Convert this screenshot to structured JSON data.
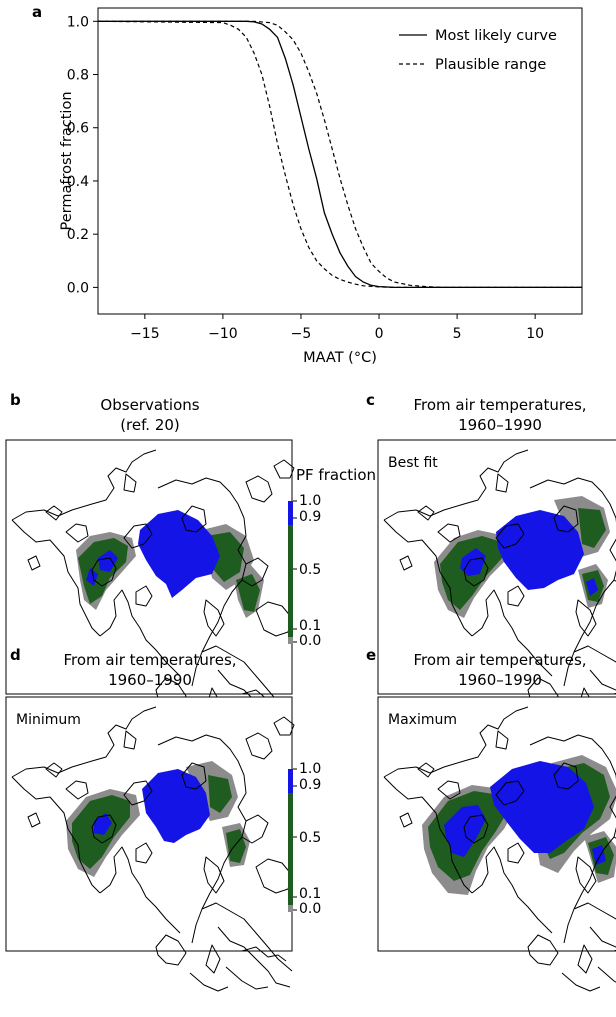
{
  "panel_a": {
    "label": "a",
    "ylabel": "Permafrost fraction",
    "xlabel": "MAAT (°C)",
    "legend": {
      "solid": "Most likely curve",
      "dashed": "Plausible range"
    }
  },
  "panel_b": {
    "label": "b",
    "title_line1": "Observations",
    "title_line2": "(ref. 20)"
  },
  "panel_c": {
    "label": "c",
    "title_line1": "From air temperatures,",
    "title_line2": "1960–1990",
    "inset": "Best fit"
  },
  "panel_d": {
    "label": "d",
    "title_line1": "From air temperatures,",
    "title_line2": "1960–1990",
    "inset": "Minimum"
  },
  "panel_e": {
    "label": "e",
    "title_line1": "From air temperatures,",
    "title_line2": "1960–1990",
    "inset": "Maximum"
  },
  "colorbar": {
    "title": "PF fraction",
    "labels": [
      "1.0",
      "0.9",
      "0.5",
      "0.1",
      "0.0"
    ],
    "colors": {
      "high": "#1414e6",
      "mid": "#1f5c1f",
      "low": "#8c8c8c"
    }
  },
  "chart_data": {
    "type": "line",
    "xlim": [
      -18,
      13
    ],
    "ylim": [
      -0.1,
      1.05
    ],
    "xticks": [
      -15,
      -10,
      -5,
      0,
      5,
      10
    ],
    "yticks": [
      0.0,
      0.2,
      0.4,
      0.6,
      0.8,
      1.0
    ],
    "xtick_labels": [
      "−15",
      "−10",
      "−5",
      "0",
      "5",
      "10"
    ],
    "ytick_labels": [
      "0.0",
      "0.2",
      "0.4",
      "0.6",
      "0.8",
      "1.0"
    ],
    "grid": false,
    "legend_position": "top-right",
    "series": [
      {
        "name": "Most likely curve",
        "style": "solid",
        "x": [
          -18,
          -8.5,
          -8,
          -7.5,
          -7,
          -6.5,
          -6,
          -5.5,
          -5,
          -4.5,
          -4,
          -3.5,
          -3,
          -2.5,
          -2,
          -1.5,
          -1,
          -0.5,
          0,
          1,
          3,
          13
        ],
        "y": [
          1.0,
          1.0,
          0.998,
          0.99,
          0.97,
          0.94,
          0.86,
          0.76,
          0.64,
          0.52,
          0.41,
          0.28,
          0.2,
          0.13,
          0.08,
          0.04,
          0.02,
          0.008,
          0.003,
          0.0,
          0.0,
          0.0
        ]
      },
      {
        "name": "Plausible range",
        "style": "dashed",
        "x": [
          -18,
          -10,
          -9.5,
          -9,
          -8.5,
          -8,
          -7.5,
          -7,
          -6.5,
          -6,
          -5.5,
          -5,
          -4.5,
          -4,
          -3.5,
          -3,
          -2.5,
          -2,
          -1.5,
          -1,
          0,
          1,
          13
        ],
        "y": [
          1.0,
          0.995,
          0.985,
          0.97,
          0.94,
          0.88,
          0.8,
          0.68,
          0.54,
          0.42,
          0.31,
          0.22,
          0.15,
          0.1,
          0.07,
          0.045,
          0.03,
          0.02,
          0.012,
          0.006,
          0.002,
          0.0,
          0.0
        ]
      },
      {
        "name": "Plausible range",
        "style": "dashed",
        "x": [
          -18,
          -8,
          -7,
          -6.5,
          -6,
          -5.5,
          -5,
          -4.5,
          -4,
          -3.5,
          -3,
          -2.5,
          -2,
          -1.5,
          -1,
          -0.5,
          0,
          0.5,
          1,
          2,
          3,
          4,
          13
        ],
        "y": [
          1.0,
          1.0,
          0.995,
          0.985,
          0.96,
          0.93,
          0.88,
          0.81,
          0.73,
          0.63,
          0.52,
          0.41,
          0.31,
          0.22,
          0.15,
          0.09,
          0.06,
          0.035,
          0.02,
          0.008,
          0.003,
          0.0,
          0.0
        ]
      }
    ]
  }
}
